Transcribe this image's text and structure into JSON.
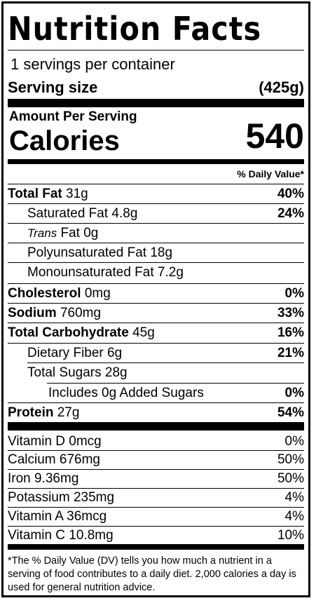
{
  "title": "Nutrition Facts",
  "servings": "1 servings per container",
  "serving_size_label": "Serving size",
  "serving_size_value": "(425g)",
  "amount_per_serving": "Amount Per Serving",
  "calories_label": "Calories",
  "calories_value": "540",
  "dv_header": "% Daily Value*",
  "nutrients": [
    {
      "name": "Total Fat",
      "amount": "31g",
      "dv": "40%"
    },
    {
      "name": "Saturated Fat",
      "amount": "4.8g",
      "dv": "24%"
    },
    {
      "name_italic": "Trans",
      "name": "Fat",
      "amount": "0g",
      "dv": ""
    },
    {
      "name": "Polyunsaturated Fat",
      "amount": "18g",
      "dv": ""
    },
    {
      "name": "Monounsaturated Fat",
      "amount": "7.2g",
      "dv": ""
    },
    {
      "name": "Cholesterol",
      "amount": "0mg",
      "dv": "0%"
    },
    {
      "name": "Sodium",
      "amount": "760mg",
      "dv": "33%"
    },
    {
      "name": "Total Carbohydrate",
      "amount": "45g",
      "dv": "16%"
    },
    {
      "name": "Dietary Fiber",
      "amount": "6g",
      "dv": "21%"
    },
    {
      "name": "Total Sugars",
      "amount": "28g",
      "dv": ""
    },
    {
      "name": "Includes 0g Added Sugars",
      "dv": "0%"
    },
    {
      "name": "Protein",
      "amount": "27g",
      "dv": "54%"
    }
  ],
  "vitamins": [
    {
      "label": "Vitamin D 0mcg",
      "dv": "0%"
    },
    {
      "label": "Calcium 676mg",
      "dv": "50%"
    },
    {
      "label": "Iron 9.36mg",
      "dv": "50%"
    },
    {
      "label": "Potassium 235mg",
      "dv": "4%"
    },
    {
      "label": "Vitamin A 36mcg",
      "dv": "4%"
    },
    {
      "label": "Vitamin C 10.8mg",
      "dv": "10%"
    }
  ],
  "footnote": "*The % Daily Value (DV) tells you how much a nutrient in a serving of food contributes to a daily diet. 2,000 calories a day is used for general nutrition advice."
}
